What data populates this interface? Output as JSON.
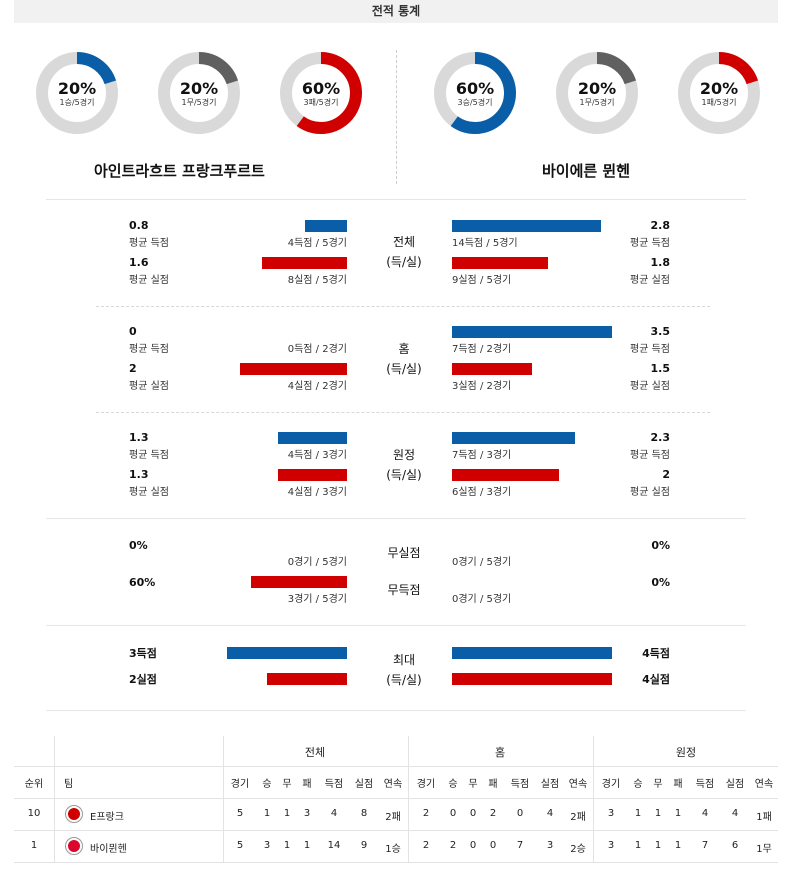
{
  "header": {
    "title": "전적 통계"
  },
  "colors": {
    "blue": "#0a5ea8",
    "red": "#d00000",
    "gray": "#606060",
    "track": "#d9d9d9"
  },
  "donuts_left": [
    {
      "pct": "20%",
      "sub": "1승/5경기",
      "fraction": 0.2,
      "color": "#0a5ea8"
    },
    {
      "pct": "20%",
      "sub": "1무/5경기",
      "fraction": 0.2,
      "color": "#606060"
    },
    {
      "pct": "60%",
      "sub": "3패/5경기",
      "fraction": 0.6,
      "color": "#d00000"
    }
  ],
  "donuts_right": [
    {
      "pct": "60%",
      "sub": "3승/5경기",
      "fraction": 0.6,
      "color": "#0a5ea8"
    },
    {
      "pct": "20%",
      "sub": "1무/5경기",
      "fraction": 0.2,
      "color": "#606060"
    },
    {
      "pct": "20%",
      "sub": "1패/5경기",
      "fraction": 0.2,
      "color": "#d00000"
    }
  ],
  "teams": {
    "left": "아인트라흐트 프랑크푸르트",
    "right": "바이에른 뮌헨"
  },
  "sections": {
    "total": {
      "mid_top": "전체",
      "mid_bottom": "(득/실)",
      "left_gf": "0.8",
      "left_gf_label": "평균 득점",
      "left_gf_count": "4득점 / 5경기",
      "left_ga": "1.6",
      "left_ga_label": "평균 실점",
      "left_ga_count": "8실점 / 5경기",
      "right_gf": "2.8",
      "right_gf_label": "평균 득점",
      "right_gf_count": "14득점 / 5경기",
      "right_ga": "1.8",
      "right_ga_label": "평균 실점",
      "right_ga_count": "9실점 / 5경기"
    },
    "home": {
      "mid_top": "홈",
      "mid_bottom": "(득/실)",
      "left_gf": "0",
      "left_gf_label": "평균 득점",
      "left_gf_count": "0득점 / 2경기",
      "left_ga": "2",
      "left_ga_label": "평균 실점",
      "left_ga_count": "4실점 / 2경기",
      "right_gf": "3.5",
      "right_gf_label": "평균 득점",
      "right_gf_count": "7득점 / 2경기",
      "right_ga": "1.5",
      "right_ga_label": "평균 실점",
      "right_ga_count": "3실점 / 2경기"
    },
    "away": {
      "mid_top": "원정",
      "mid_bottom": "(득/실)",
      "left_gf": "1.3",
      "left_gf_label": "평균 득점",
      "left_gf_count": "4득점 / 3경기",
      "left_ga": "1.3",
      "left_ga_label": "평균 실점",
      "left_ga_count": "4실점 / 3경기",
      "right_gf": "2.3",
      "right_gf_label": "평균 득점",
      "right_gf_count": "7득점 / 3경기",
      "right_ga": "2",
      "right_ga_label": "평균 실점",
      "right_ga_count": "6실점 / 3경기"
    },
    "clean": {
      "cs_label": "무실점",
      "fts_label": "무득점",
      "left_cs": "0%",
      "left_cs_count": "0경기 / 5경기",
      "left_fts": "60%",
      "left_fts_count": "3경기 / 5경기",
      "right_cs": "0%",
      "right_cs_count": "0경기 / 5경기",
      "right_fts": "0%",
      "right_fts_count": "0경기 / 5경기"
    },
    "max": {
      "mid_top": "최대",
      "mid_bottom": "(득/실)",
      "left_gf": "3득점",
      "left_ga": "2실점",
      "right_gf": "4득점",
      "right_ga": "4실점"
    }
  },
  "table": {
    "groups": [
      "전체",
      "홈",
      "원정"
    ],
    "rank_header": "순위",
    "team_header": "팀",
    "sub_headers": [
      "경기",
      "승",
      "무",
      "패",
      "득점",
      "실점",
      "연속"
    ],
    "rows": [
      {
        "rank": "10",
        "team": "E프랑크",
        "logo_color": "#d00000",
        "total": [
          "5",
          "1",
          "1",
          "3",
          "4",
          "8",
          "2패"
        ],
        "home": [
          "2",
          "0",
          "0",
          "2",
          "0",
          "4",
          "2패"
        ],
        "away": [
          "3",
          "1",
          "1",
          "1",
          "4",
          "4",
          "1패"
        ]
      },
      {
        "rank": "1",
        "team": "바이뮌헨",
        "logo_color": "#dc052d",
        "total": [
          "5",
          "3",
          "1",
          "1",
          "14",
          "9",
          "1승"
        ],
        "home": [
          "2",
          "2",
          "0",
          "0",
          "7",
          "3",
          "2승"
        ],
        "away": [
          "3",
          "1",
          "1",
          "1",
          "7",
          "6",
          "1무"
        ]
      }
    ]
  }
}
